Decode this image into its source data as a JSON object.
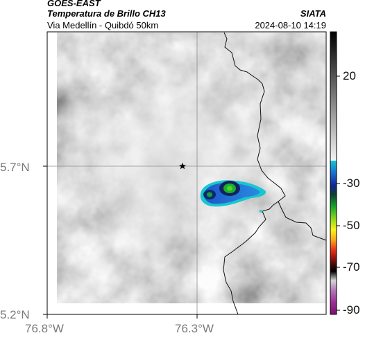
{
  "header": {
    "satellite": "GOES-EAST",
    "product": "Temperatura de Brillo CH13",
    "subtitle": "Via Medellín - Quibdó 50km",
    "agency": "SIATA",
    "datetime": "2024-08-10 14:19"
  },
  "axes": {
    "y_ticks": [
      "5.7°N",
      "5.2°N"
    ],
    "x_ticks": [
      "76.8°W",
      "76.3°W"
    ]
  },
  "colorbar": {
    "ticks": [
      "20",
      "-30",
      "-50",
      "-70",
      "-90"
    ]
  },
  "colors": {
    "frame": "#000000",
    "marker": "#000000"
  },
  "legend_icons": {
    "marker": "star-icon"
  }
}
